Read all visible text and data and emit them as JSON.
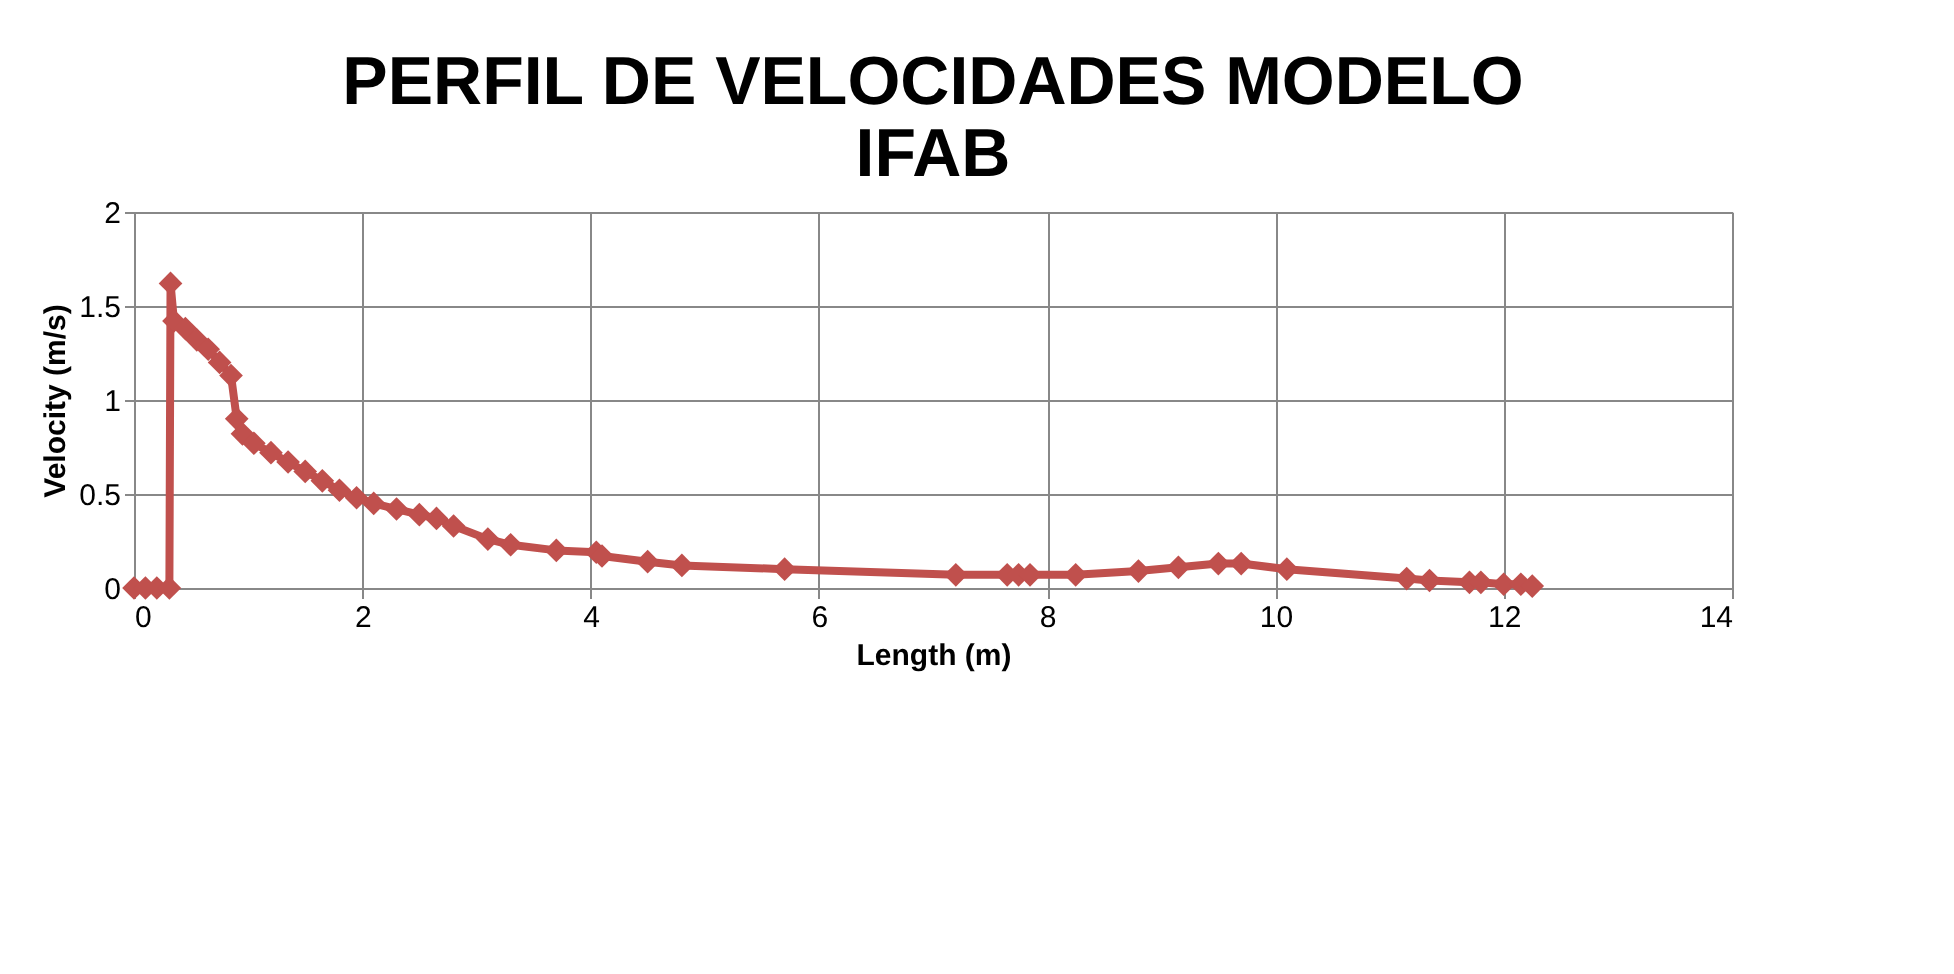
{
  "chart_data": {
    "type": "line",
    "title": [
      "PERFIL DE VELOCIDADES MODELO",
      "IFAB"
    ],
    "xlabel": "Length (m)",
    "ylabel": "Velocity (m/s)",
    "series": [
      {
        "color": "#c0504d",
        "x": [
          0.0,
          0.1,
          0.2,
          0.31,
          0.32,
          0.35,
          0.45,
          0.55,
          0.65,
          0.75,
          0.85,
          0.9,
          0.95,
          1.05,
          1.2,
          1.35,
          1.5,
          1.65,
          1.8,
          1.95,
          2.1,
          2.3,
          2.5,
          2.65,
          2.8,
          3.1,
          3.3,
          3.7,
          4.05,
          4.1,
          4.5,
          4.8,
          5.7,
          7.2,
          7.65,
          7.75,
          7.85,
          8.25,
          8.8,
          9.15,
          9.5,
          9.7,
          10.1,
          11.15,
          11.35,
          11.7,
          11.8,
          12.0,
          12.15,
          12.25
        ],
        "values": [
          0.0,
          0.0,
          0.0,
          0.0,
          1.62,
          1.42,
          1.38,
          1.32,
          1.27,
          1.2,
          1.13,
          0.9,
          0.82,
          0.77,
          0.72,
          0.67,
          0.62,
          0.57,
          0.52,
          0.48,
          0.45,
          0.42,
          0.39,
          0.37,
          0.33,
          0.26,
          0.23,
          0.2,
          0.19,
          0.17,
          0.14,
          0.12,
          0.1,
          0.07,
          0.07,
          0.07,
          0.07,
          0.07,
          0.09,
          0.11,
          0.13,
          0.13,
          0.1,
          0.05,
          0.04,
          0.03,
          0.03,
          0.02,
          0.02,
          0.01
        ]
      }
    ],
    "xlim": [
      0,
      14
    ],
    "xticks": [
      0,
      2,
      4,
      6,
      8,
      10,
      12,
      14
    ],
    "ylim": [
      0,
      2
    ],
    "yticks": [
      0,
      0.5,
      1,
      1.5,
      2
    ],
    "grid": true,
    "marker": "diamond",
    "line_style": "solid"
  }
}
